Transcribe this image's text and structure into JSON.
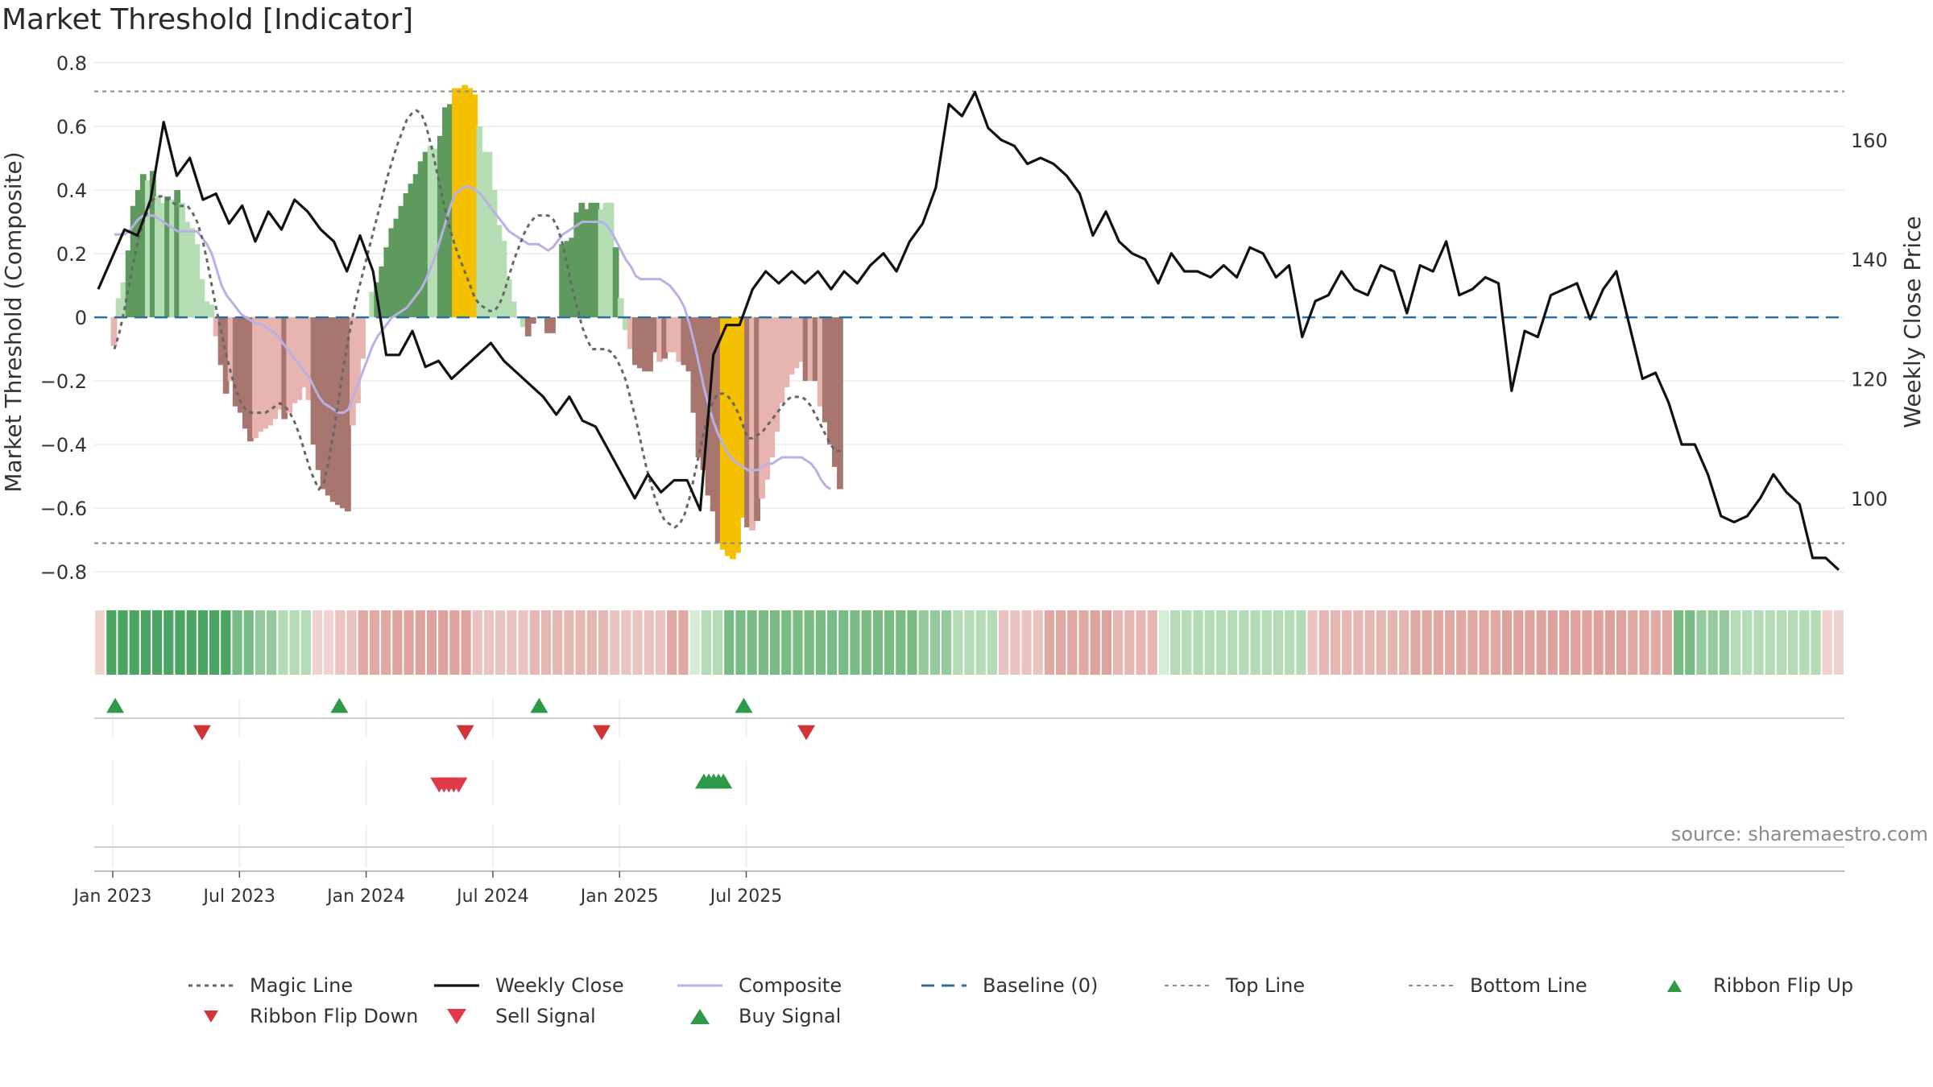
{
  "title": "Market Threshold [Indicator]",
  "source": "source: sharemaestro.com",
  "chart_data": {
    "type": "bar",
    "title": "Market Threshold [Indicator]",
    "ylabel_left": "Market Threshold (Composite)",
    "ylabel_right": "Weekly Close Price",
    "ylim_left": [
      -0.85,
      0.82
    ],
    "ylim_right": [
      85,
      174
    ],
    "yticks_left": [
      0.8,
      0.6,
      0.4,
      0.2,
      0,
      -0.2,
      -0.4,
      -0.6,
      -0.8
    ],
    "yticks_left_labels": [
      "0.8",
      "0.6",
      "0.4",
      "0.2",
      "0",
      "−0.2",
      "−0.4",
      "−0.6",
      "−0.8"
    ],
    "yticks_right": [
      160,
      140,
      120,
      100
    ],
    "top_line": 0.71,
    "bottom_line": -0.71,
    "x_ticks": [
      {
        "week": 0,
        "label": "Jan 2023"
      },
      {
        "week": 26,
        "label": "Jul 2023"
      },
      {
        "week": 52,
        "label": "Jan 2024"
      },
      {
        "week": 78,
        "label": "Jul 2024"
      },
      {
        "week": 104,
        "label": "Jan 2025"
      },
      {
        "week": 130,
        "label": "Jul 2025"
      }
    ],
    "bar_values": [
      -0.09,
      0.06,
      0.11,
      0.21,
      0.35,
      0.4,
      0.45,
      0.43,
      0.46,
      0.38,
      0.36,
      0.38,
      0.37,
      0.4,
      0.36,
      0.3,
      0.28,
      0.23,
      0.12,
      0.05,
      0.04,
      -0.06,
      -0.15,
      -0.24,
      -0.2,
      -0.28,
      -0.3,
      -0.35,
      -0.39,
      -0.38,
      -0.36,
      -0.35,
      -0.34,
      -0.32,
      -0.29,
      -0.32,
      -0.3,
      -0.27,
      -0.26,
      -0.22,
      -0.26,
      -0.4,
      -0.48,
      -0.54,
      -0.56,
      -0.58,
      -0.59,
      -0.6,
      -0.61,
      -0.34,
      -0.27,
      -0.13,
      0.0,
      0.08,
      0.11,
      0.16,
      0.22,
      0.28,
      0.31,
      0.35,
      0.39,
      0.42,
      0.45,
      0.49,
      0.52,
      0.54,
      0.53,
      0.57,
      0.66,
      0.67,
      0.72,
      0.72,
      0.73,
      0.72,
      0.7,
      0.6,
      0.52,
      0.52,
      0.4,
      0.29,
      0.24,
      0.12,
      0.05,
      0.0,
      -0.03,
      -0.06,
      -0.02,
      0.0,
      0.0,
      -0.05,
      -0.05,
      0.0,
      0.23,
      0.24,
      0.25,
      0.33,
      0.36,
      0.34,
      0.36,
      0.36,
      0.34,
      0.36,
      0.36,
      0.22,
      0.06,
      -0.04,
      -0.1,
      -0.15,
      -0.16,
      -0.17,
      -0.17,
      -0.11,
      -0.14,
      -0.13,
      -0.11,
      -0.11,
      -0.14,
      -0.15,
      -0.17,
      -0.3,
      -0.44,
      -0.48,
      -0.56,
      -0.61,
      -0.71,
      -0.73,
      -0.75,
      -0.76,
      -0.74,
      -0.63,
      -0.66,
      -0.67,
      -0.64,
      -0.57,
      -0.51,
      -0.44,
      -0.36,
      -0.27,
      -0.22,
      -0.18,
      -0.16,
      -0.14,
      -0.2,
      -0.2,
      -0.2,
      -0.28,
      -0.33,
      -0.4,
      -0.47,
      -0.54
    ],
    "bar_colors": [
      "#e8b4b0",
      "#b5deb4",
      "#b5deb4",
      "#5e9a5e",
      "#5e9a5e",
      "#5e9a5e",
      "#5e9a5e",
      "#b5deb4",
      "#5e9a5e",
      "#b5deb4",
      "#b5deb4",
      "#5e9a5e",
      "#b5deb4",
      "#5e9a5e",
      "#b5deb4",
      "#b5deb4",
      "#b5deb4",
      "#b5deb4",
      "#b5deb4",
      "#b5deb4",
      "#b5deb4",
      "#e8b4b0",
      "#a8756f",
      "#a8756f",
      "#e8b4b0",
      "#a8756f",
      "#a8756f",
      "#a8756f",
      "#a8756f",
      "#e8b4b0",
      "#e8b4b0",
      "#e8b4b0",
      "#e8b4b0",
      "#e8b4b0",
      "#e8b4b0",
      "#a8756f",
      "#e8b4b0",
      "#e8b4b0",
      "#e8b4b0",
      "#e8b4b0",
      "#e8b4b0",
      "#a8756f",
      "#a8756f",
      "#a8756f",
      "#a8756f",
      "#a8756f",
      "#a8756f",
      "#a8756f",
      "#a8756f",
      "#e8b4b0",
      "#e8b4b0",
      "#e8b4b0",
      "#e8b4b0",
      "#b5deb4",
      "#5e9a5e",
      "#5e9a5e",
      "#5e9a5e",
      "#5e9a5e",
      "#5e9a5e",
      "#5e9a5e",
      "#5e9a5e",
      "#5e9a5e",
      "#5e9a5e",
      "#5e9a5e",
      "#5e9a5e",
      "#b5deb4",
      "#b5deb4",
      "#5e9a5e",
      "#5e9a5e",
      "#5e9a5e",
      "#f5c000",
      "#f5c000",
      "#f5c000",
      "#f5c000",
      "#f5c000",
      "#b5deb4",
      "#b5deb4",
      "#b5deb4",
      "#b5deb4",
      "#b5deb4",
      "#b5deb4",
      "#b5deb4",
      "#b5deb4",
      "#b5deb4",
      "#b5deb4",
      "#a8756f",
      "#a8756f",
      "#e8b4b0",
      "#e8b4b0",
      "#a8756f",
      "#a8756f",
      "#b5deb4",
      "#5e9a5e",
      "#5e9a5e",
      "#5e9a5e",
      "#5e9a5e",
      "#5e9a5e",
      "#5e9a5e",
      "#5e9a5e",
      "#5e9a5e",
      "#b5deb4",
      "#b5deb4",
      "#b5deb4",
      "#5e9a5e",
      "#b5deb4",
      "#b5deb4",
      "#e8b4b0",
      "#a8756f",
      "#a8756f",
      "#a8756f",
      "#a8756f",
      "#a8756f",
      "#e8b4b0",
      "#a8756f",
      "#e8b4b0",
      "#e8b4b0",
      "#e8b4b0",
      "#a8756f",
      "#a8756f",
      "#a8756f",
      "#a8756f",
      "#a8756f",
      "#a8756f",
      "#a8756f",
      "#a8756f",
      "#f5c000",
      "#f5c000",
      "#f5c000",
      "#f5c000",
      "#f5c000",
      "#a8756f",
      "#e8b4b0",
      "#a8756f",
      "#e8b4b0",
      "#e8b4b0",
      "#e8b4b0",
      "#e8b4b0",
      "#e8b4b0",
      "#e8b4b0",
      "#e8b4b0",
      "#e8b4b0",
      "#e8b4b0",
      "#a8756f",
      "#e8b4b0",
      "#a8756f",
      "#e8b4b0",
      "#a8756f",
      "#a8756f",
      "#a8756f",
      "#a8756f"
    ],
    "composite": [
      0.26,
      0.26,
      0.26,
      0.27,
      0.29,
      0.31,
      0.32,
      0.32,
      0.32,
      0.31,
      0.3,
      0.29,
      0.28,
      0.27,
      0.27,
      0.27,
      0.27,
      0.27,
      0.25,
      0.23,
      0.2,
      0.15,
      0.1,
      0.07,
      0.05,
      0.03,
      0.01,
      0.0,
      -0.01,
      -0.02,
      -0.02,
      -0.03,
      -0.04,
      -0.05,
      -0.07,
      -0.09,
      -0.11,
      -0.13,
      -0.15,
      -0.17,
      -0.19,
      -0.22,
      -0.25,
      -0.27,
      -0.28,
      -0.29,
      -0.3,
      -0.3,
      -0.29,
      -0.25,
      -0.21,
      -0.17,
      -0.13,
      -0.09,
      -0.06,
      -0.04,
      -0.02,
      0.0,
      0.01,
      0.02,
      0.03,
      0.05,
      0.07,
      0.09,
      0.12,
      0.16,
      0.2,
      0.25,
      0.3,
      0.35,
      0.39,
      0.4,
      0.41,
      0.41,
      0.4,
      0.39,
      0.37,
      0.35,
      0.33,
      0.31,
      0.29,
      0.27,
      0.26,
      0.25,
      0.24,
      0.23,
      0.23,
      0.23,
      0.22,
      0.21,
      0.22,
      0.24,
      0.26,
      0.27,
      0.28,
      0.29,
      0.3,
      0.3,
      0.3,
      0.3,
      0.3,
      0.29,
      0.27,
      0.24,
      0.21,
      0.18,
      0.16,
      0.13,
      0.12,
      0.12,
      0.12,
      0.12,
      0.12,
      0.11,
      0.1,
      0.08,
      0.06,
      0.03,
      -0.02,
      -0.08,
      -0.15,
      -0.22,
      -0.28,
      -0.33,
      -0.37,
      -0.4,
      -0.43,
      -0.45,
      -0.46,
      -0.47,
      -0.48,
      -0.48,
      -0.48,
      -0.47,
      -0.46,
      -0.46,
      -0.45,
      -0.44,
      -0.44,
      -0.44,
      -0.44,
      -0.44,
      -0.45,
      -0.46,
      -0.48,
      -0.51,
      -0.53,
      -0.54
    ],
    "magic_line": [
      -0.1,
      -0.05,
      0.02,
      0.1,
      0.18,
      0.25,
      0.3,
      0.34,
      0.37,
      0.38,
      0.38,
      0.37,
      0.36,
      0.35,
      0.35,
      0.35,
      0.33,
      0.3,
      0.25,
      0.18,
      0.1,
      0.02,
      -0.05,
      -0.12,
      -0.18,
      -0.23,
      -0.27,
      -0.29,
      -0.3,
      -0.3,
      -0.3,
      -0.3,
      -0.29,
      -0.28,
      -0.27,
      -0.28,
      -0.3,
      -0.33,
      -0.37,
      -0.42,
      -0.47,
      -0.51,
      -0.54,
      -0.52,
      -0.45,
      -0.36,
      -0.26,
      -0.16,
      -0.07,
      0.01,
      0.08,
      0.14,
      0.2,
      0.26,
      0.32,
      0.38,
      0.44,
      0.49,
      0.54,
      0.58,
      0.62,
      0.64,
      0.65,
      0.64,
      0.6,
      0.54,
      0.47,
      0.4,
      0.33,
      0.27,
      0.22,
      0.18,
      0.14,
      0.1,
      0.06,
      0.04,
      0.03,
      0.02,
      0.02,
      0.04,
      0.08,
      0.13,
      0.18,
      0.22,
      0.26,
      0.29,
      0.31,
      0.32,
      0.32,
      0.32,
      0.31,
      0.28,
      0.23,
      0.16,
      0.09,
      0.03,
      -0.03,
      -0.07,
      -0.1,
      -0.1,
      -0.1,
      -0.1,
      -0.11,
      -0.13,
      -0.16,
      -0.2,
      -0.26,
      -0.32,
      -0.39,
      -0.46,
      -0.52,
      -0.57,
      -0.61,
      -0.64,
      -0.65,
      -0.66,
      -0.65,
      -0.62,
      -0.57,
      -0.5,
      -0.43,
      -0.36,
      -0.3,
      -0.26,
      -0.24,
      -0.24,
      -0.25,
      -0.27,
      -0.3,
      -0.34,
      -0.38,
      -0.38,
      -0.37,
      -0.36,
      -0.34,
      -0.32,
      -0.3,
      -0.28,
      -0.26,
      -0.25,
      -0.25,
      -0.25,
      -0.26,
      -0.28,
      -0.31,
      -0.34,
      -0.37,
      -0.4,
      -0.42,
      -0.42
    ],
    "weekly_close": [
      135,
      140,
      145,
      144,
      150,
      163,
      154,
      157,
      150,
      151,
      146,
      149,
      143,
      148,
      145,
      150,
      148,
      145,
      143,
      138,
      144,
      138,
      124,
      124,
      128,
      122,
      123,
      120,
      122,
      124,
      126,
      123,
      121,
      119,
      117,
      114,
      117,
      113,
      112,
      108,
      104,
      100,
      104,
      101,
      103,
      103,
      98,
      124,
      129,
      129,
      135,
      138,
      136,
      138,
      136,
      138,
      135,
      138,
      136,
      139,
      141,
      138,
      143,
      146,
      152,
      166,
      164,
      168,
      162,
      160,
      159,
      156,
      157,
      156,
      154,
      151,
      144,
      148,
      143,
      141,
      140,
      136,
      141,
      138,
      138,
      137,
      139,
      137,
      142,
      141,
      137,
      139,
      127,
      133,
      134,
      138,
      135,
      134,
      139,
      138,
      131,
      139,
      138,
      143,
      134,
      135,
      137,
      136,
      118,
      128,
      127,
      134,
      135,
      136,
      130,
      135,
      138,
      129,
      120,
      121,
      116,
      109,
      109,
      104,
      97,
      96,
      97,
      100,
      104,
      101,
      99,
      90,
      90,
      88
    ],
    "ribbon_colors": [
      "#f0d2d0",
      "#4ca562",
      "#4ca562",
      "#4ca562",
      "#4ca562",
      "#4ca562",
      "#4ca562",
      "#4ca562",
      "#4ca562",
      "#4ca562",
      "#4ca562",
      "#4ca562",
      "#79bb84",
      "#79bb84",
      "#95c99e",
      "#95c99e",
      "#b4dcb7",
      "#b4dcb7",
      "#b4dcb7",
      "#f0d2d0",
      "#f0d2d0",
      "#eac4c0",
      "#eac4c0",
      "#e0a9a4",
      "#e0a9a4",
      "#e0a9a4",
      "#dda29d",
      "#dda29d",
      "#dda29d",
      "#dda29d",
      "#dda29d",
      "#dda29d",
      "#dda29d",
      "#eac4c0",
      "#eac4c0",
      "#eac4c0",
      "#eac4c0",
      "#eac4c0",
      "#e5b6b2",
      "#e5b6b2",
      "#e5b6b2",
      "#e5b6b2",
      "#e5b6b2",
      "#e5b6b2",
      "#e5b6b2",
      "#eac4c0",
      "#eac4c0",
      "#eac4c0",
      "#eac4c0",
      "#eac4c0",
      "#e0a9a4",
      "#e0a9a4",
      "#d5ecd7",
      "#b4dcb7",
      "#b4dcb7",
      "#79bb84",
      "#79bb84",
      "#79bb84",
      "#79bb84",
      "#79bb84",
      "#79bb84",
      "#79bb84",
      "#79bb84",
      "#79bb84",
      "#79bb84",
      "#79bb84",
      "#79bb84",
      "#79bb84",
      "#79bb84",
      "#79bb84",
      "#79bb84",
      "#79bb84",
      "#95c99e",
      "#95c99e",
      "#95c99e",
      "#b4dcb7",
      "#b4dcb7",
      "#b4dcb7",
      "#b4dcb7",
      "#eac4c0",
      "#eac4c0",
      "#eac4c0",
      "#eac4c0",
      "#e0a9a4",
      "#e0a9a4",
      "#e0a9a4",
      "#e0a9a4",
      "#dda29d",
      "#dda29d",
      "#e5b6b2",
      "#e5b6b2",
      "#e5b6b2",
      "#e5b6b2",
      "#d5ecd7",
      "#b4dcb7",
      "#b4dcb7",
      "#b4dcb7",
      "#b4dcb7",
      "#b4dcb7",
      "#b4dcb7",
      "#b4dcb7",
      "#b4dcb7",
      "#b4dcb7",
      "#b4dcb7",
      "#b4dcb7",
      "#b4dcb7",
      "#eac4c0",
      "#e5b6b2",
      "#e5b6b2",
      "#e5b6b2",
      "#e5b6b2",
      "#e5b6b2",
      "#e5b6b2",
      "#e5b6b2",
      "#e5b6b2",
      "#e0a9a4",
      "#e0a9a4",
      "#e0a9a4",
      "#e0a9a4",
      "#e0a9a4",
      "#e0a9a4",
      "#e0a9a4",
      "#e0a9a4",
      "#dda29d",
      "#dda29d",
      "#dda29d",
      "#dda29d",
      "#dda29d",
      "#dda29d",
      "#dda29d",
      "#dda29d",
      "#dda29d",
      "#dda29d",
      "#dda29d",
      "#e0a9a4",
      "#e0a9a4",
      "#e0a9a4",
      "#e0a9a4",
      "#79bb84",
      "#79bb84",
      "#95c99e",
      "#95c99e",
      "#95c99e",
      "#b4dcb7",
      "#b4dcb7",
      "#b4dcb7",
      "#b4dcb7",
      "#b4dcb7",
      "#b4dcb7",
      "#b4dcb7",
      "#b4dcb7",
      "#f0d2d0",
      "#f0d2d0"
    ],
    "ribbon_flip_up_weeks": [
      1,
      47,
      88,
      130
    ],
    "ribbon_flip_down_weeks": [
      18,
      72,
      100,
      142
    ],
    "sell_signal_weeks": [
      65,
      66,
      67,
      68,
      69
    ],
    "buy_signal_weeks": [
      120,
      121,
      122,
      123,
      124
    ],
    "legend": [
      {
        "key": "magic",
        "label": "Magic Line"
      },
      {
        "key": "close",
        "label": "Weekly Close"
      },
      {
        "key": "composite",
        "label": "Composite"
      },
      {
        "key": "baseline",
        "label": "Baseline (0)"
      },
      {
        "key": "top",
        "label": "Top Line"
      },
      {
        "key": "bottom",
        "label": "Bottom Line"
      },
      {
        "key": "flipup",
        "label": "Ribbon Flip Up"
      },
      {
        "key": "flipdown",
        "label": "Ribbon Flip Down"
      },
      {
        "key": "sell",
        "label": "Sell Signal"
      },
      {
        "key": "buy",
        "label": "Buy Signal"
      }
    ]
  },
  "colors": {
    "close": "#111111",
    "composite": "#b9b1e6",
    "magic": "#666666",
    "baseline": "#2d6f9c",
    "threshold": "#8a8a8a",
    "flip_up": "#2e9a48",
    "flip_down": "#d03434",
    "sell": "#e03a48",
    "buy": "#2e9a48"
  }
}
